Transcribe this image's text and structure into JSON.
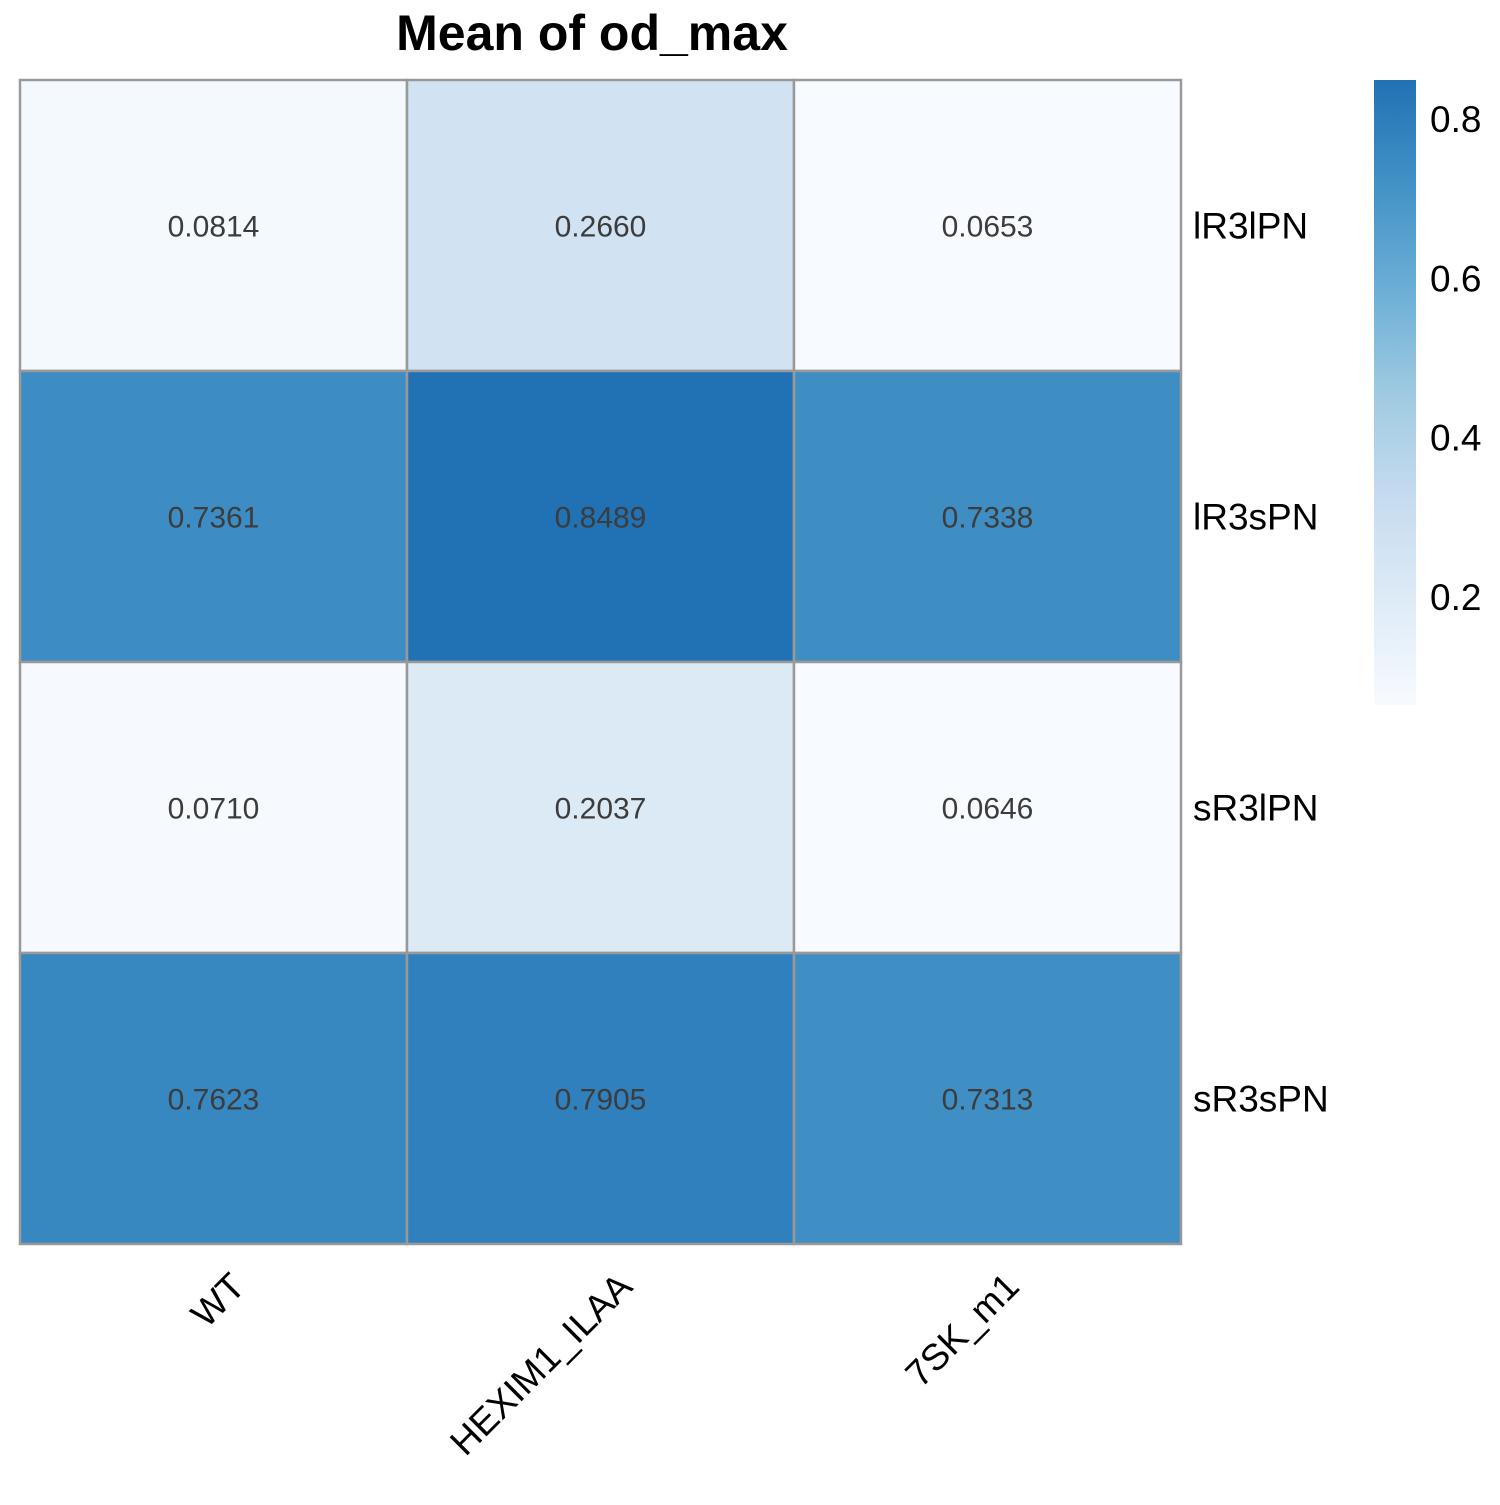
{
  "chart_data": {
    "type": "heatmap",
    "title": "Mean of  od_max",
    "columns": [
      "WT",
      "HEXIM1_ILAA",
      "7SK_m1"
    ],
    "rows": [
      "lR3lPN",
      "lR3sPN",
      "sR3lPN",
      "sR3sPN"
    ],
    "values": [
      [
        0.0814,
        0.266,
        0.0653
      ],
      [
        0.7361,
        0.8489,
        0.7338
      ],
      [
        0.071,
        0.2037,
        0.0646
      ],
      [
        0.7623,
        0.7905,
        0.7313
      ]
    ],
    "value_labels": [
      [
        "0.0814",
        "0.2660",
        "0.0653"
      ],
      [
        "0.7361",
        "0.8489",
        "0.7338"
      ],
      [
        "0.0710",
        "0.2037",
        "0.0646"
      ],
      [
        "0.7623",
        "0.7905",
        "0.7313"
      ]
    ],
    "color_scale": {
      "min": 0.0646,
      "max": 0.8489,
      "low_color": "#f7fbff",
      "high_color": "#2171b5",
      "stops": [
        "#f7fbff",
        "#deebf7",
        "#c6dbef",
        "#9ecae1",
        "#6baed6",
        "#4292c6",
        "#2171b5"
      ]
    },
    "legend": {
      "ticks": [
        0.2,
        0.4,
        0.6,
        0.8
      ],
      "tick_labels": [
        "0.2",
        "0.4",
        "0.6",
        "0.8"
      ],
      "position": "right"
    },
    "grid_color": "#999999"
  }
}
